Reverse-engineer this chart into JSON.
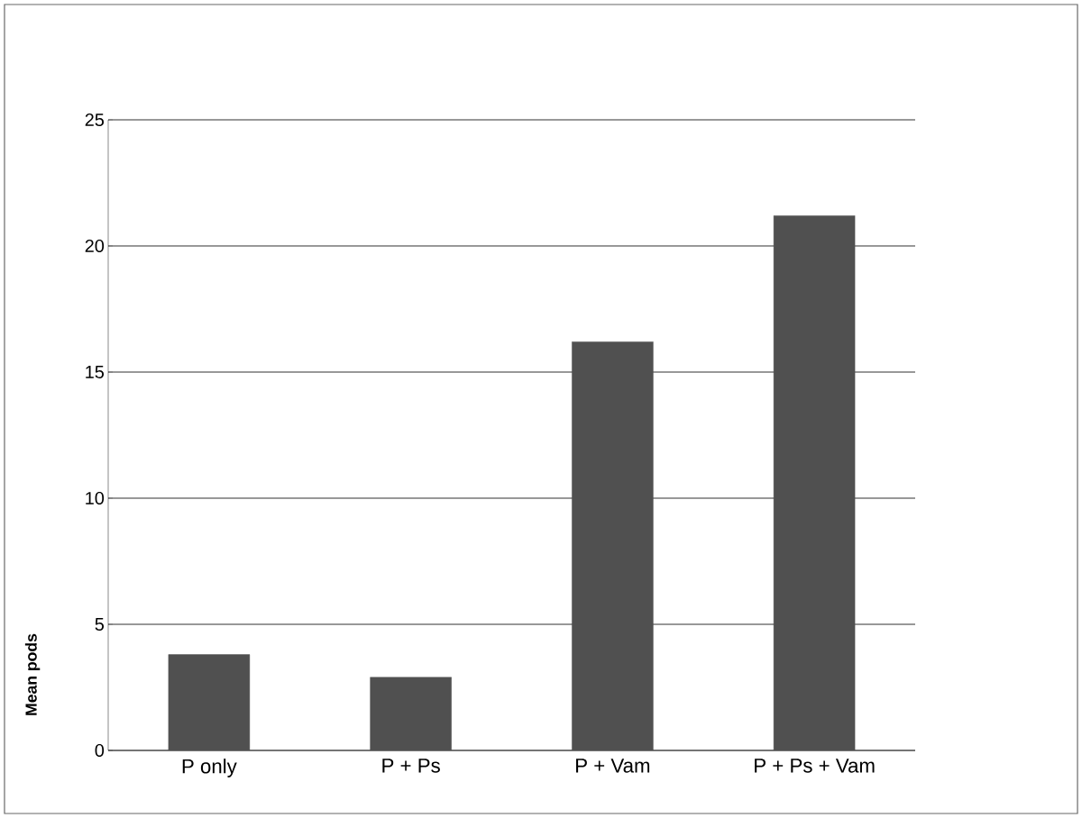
{
  "chart_data": {
    "type": "bar",
    "ylabel": "Mean  pods",
    "categories": [
      "P only",
      "P + Ps",
      "P + Vam",
      "P + Ps + Vam"
    ],
    "values": [
      3.8,
      2.9,
      16.2,
      21.2
    ],
    "color": "#505050",
    "ylim": [
      0,
      25
    ],
    "yticks": [
      0,
      5,
      10,
      15,
      20,
      25
    ],
    "grid": "y"
  }
}
